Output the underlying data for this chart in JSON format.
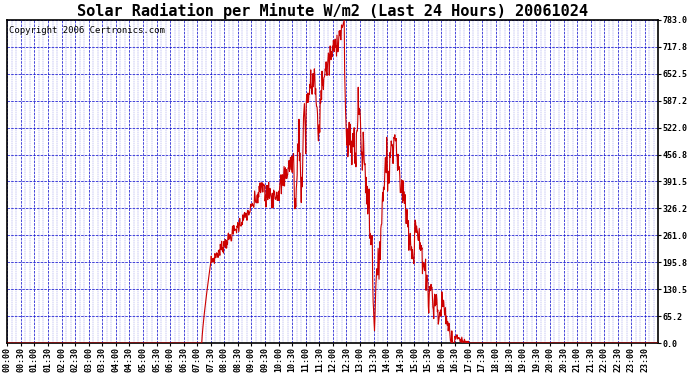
{
  "title": "Solar Radiation per Minute W/m2 (Last 24 Hours) 20061024",
  "copyright_text": "Copyright 2006 Certronics.com",
  "yticks": [
    0.0,
    65.2,
    130.5,
    195.8,
    261.0,
    326.2,
    391.5,
    456.8,
    522.0,
    587.2,
    652.5,
    717.8,
    783.0
  ],
  "ymax": 783.0,
  "ymin": 0.0,
  "bg_color": "#ffffff",
  "plot_bg_color": "#ffffff",
  "line_color": "#cc0000",
  "grid_color": "#0000cc",
  "border_color": "#000000",
  "title_fontsize": 11,
  "copyright_fontsize": 6.5,
  "tick_label_fontsize": 6,
  "xtick_labels": [
    "00:00",
    "00:30",
    "01:00",
    "01:30",
    "02:00",
    "02:30",
    "03:00",
    "03:30",
    "04:00",
    "04:30",
    "05:00",
    "05:30",
    "06:00",
    "06:30",
    "07:00",
    "07:30",
    "08:00",
    "08:30",
    "09:00",
    "09:30",
    "10:00",
    "10:30",
    "11:00",
    "11:30",
    "12:00",
    "12:30",
    "13:00",
    "13:30",
    "14:00",
    "14:30",
    "15:00",
    "15:30",
    "16:00",
    "16:30",
    "17:00",
    "17:30",
    "18:00",
    "18:30",
    "19:00",
    "19:30",
    "20:00",
    "20:30",
    "21:00",
    "21:30",
    "22:00",
    "22:30",
    "23:00",
    "23:30"
  ],
  "num_points": 1440,
  "figwidth": 6.9,
  "figheight": 3.75,
  "dpi": 100
}
